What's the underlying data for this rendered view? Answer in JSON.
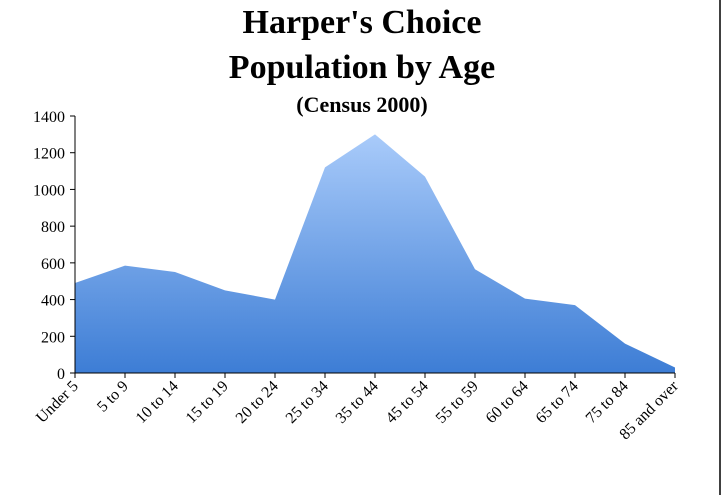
{
  "chart_data": {
    "type": "area",
    "title": [
      "Harper's Choice",
      "Population by Age"
    ],
    "subtitle": "(Census 2000)",
    "categories": [
      "Under 5",
      "5 to 9",
      "10 to 14",
      "15 to 19",
      "20 to 24",
      "25 to 34",
      "35 to 44",
      "45 to 54",
      "55 to 59",
      "60 to 64",
      "65 to 74",
      "75 to 84",
      "85 and over"
    ],
    "values": [
      490,
      585,
      550,
      450,
      400,
      1120,
      1300,
      1070,
      565,
      405,
      370,
      160,
      30
    ],
    "color_top": "#a9cbfa",
    "color_bottom": "#3d7dd5",
    "ylim": [
      0,
      1400
    ],
    "yticks": [
      0,
      200,
      400,
      600,
      800,
      1000,
      1200,
      1400
    ]
  }
}
